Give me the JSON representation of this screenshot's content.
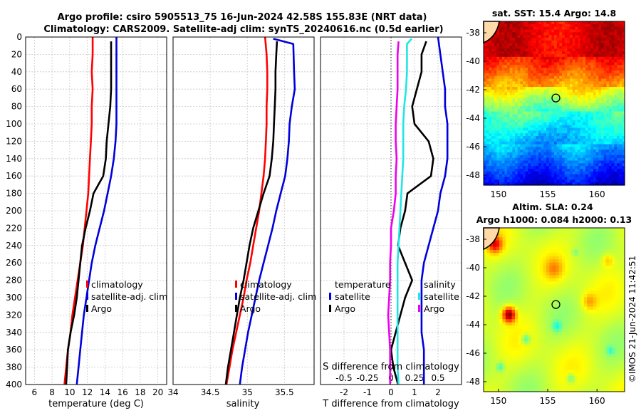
{
  "figure": {
    "title_line1": "Argo profile: csiro 5905513_75 16-Jun-2024 42.58S 155.83E (NRT data)",
    "title_line2": "Climatology: CARS2009. Satellite-adj clim: synTS_20240616.nc (0.5d earlier)",
    "credit": "©IMOS 21-Jun-2024 11:42:51"
  },
  "colors": {
    "climatology": "#ff0000",
    "satellite_adj_clim": "#0000dd",
    "argo": "#000000",
    "temp_diff_satellite": "#0000dd",
    "sal_diff_satellite": "#22e5e5",
    "sal_diff_argo": "#ee00ee",
    "grid": "#c8c8c8"
  },
  "chart_data": [
    {
      "id": "temperature",
      "type": "line",
      "xlabel": "temperature (deg C)",
      "xlim": [
        5,
        21
      ],
      "xticks": [
        6,
        8,
        10,
        12,
        14,
        16,
        18,
        20
      ],
      "ylim": [
        0,
        400
      ],
      "yticks": [
        0,
        20,
        40,
        60,
        80,
        100,
        120,
        140,
        160,
        180,
        200,
        220,
        240,
        260,
        280,
        300,
        320,
        340,
        360,
        380,
        400
      ],
      "y_reversed": true,
      "series": [
        {
          "name": "climatology",
          "color": "#ff0000",
          "x": [
            12.6,
            12.6,
            12.5,
            12.6,
            12.5,
            12.5,
            12.4,
            12.3,
            12.2,
            12.1,
            11.9,
            11.7,
            11.5,
            11.2,
            10.9,
            10.6,
            10.3,
            10.1,
            9.8,
            9.6,
            9.4
          ],
          "y": [
            0,
            20,
            40,
            60,
            80,
            100,
            120,
            140,
            160,
            180,
            200,
            220,
            240,
            260,
            280,
            300,
            320,
            340,
            360,
            380,
            400
          ]
        },
        {
          "name": "satellite-adj. clim",
          "color": "#0000dd",
          "x": [
            15.3,
            15.3,
            15.3,
            15.3,
            15.3,
            15.3,
            15.2,
            15.0,
            14.7,
            14.3,
            13.9,
            13.4,
            12.9,
            12.5,
            12.2,
            11.9,
            11.6,
            11.4,
            11.2,
            11.0,
            10.8
          ],
          "y": [
            0,
            20,
            40,
            60,
            80,
            100,
            120,
            140,
            160,
            180,
            200,
            220,
            240,
            260,
            280,
            300,
            320,
            340,
            360,
            380,
            400
          ]
        },
        {
          "name": "Argo",
          "color": "#000000",
          "x": [
            14.7,
            14.7,
            14.7,
            14.7,
            14.6,
            14.4,
            14.2,
            14.1,
            13.8,
            12.7,
            12.3,
            11.8,
            11.4,
            11.2,
            11.0,
            10.8,
            10.5,
            10.1,
            9.8,
            9.7,
            9.6
          ],
          "y": [
            5,
            20,
            40,
            60,
            80,
            100,
            120,
            140,
            160,
            180,
            200,
            220,
            240,
            260,
            280,
            300,
            320,
            340,
            360,
            380,
            400
          ]
        }
      ],
      "legend": [
        "climatology",
        "satellite-adj. clim",
        "Argo"
      ]
    },
    {
      "id": "salinity",
      "type": "line",
      "xlabel": "salinity",
      "xlim": [
        34.0,
        35.9
      ],
      "xticks": [
        34,
        34.5,
        35,
        35.5
      ],
      "xtick_labels": [
        "34",
        "34.5",
        "35",
        "35.5"
      ],
      "ylim": [
        0,
        400
      ],
      "y_reversed": true,
      "series": [
        {
          "name": "climatology",
          "color": "#ff0000",
          "x": [
            35.24,
            35.26,
            35.27,
            35.27,
            35.26,
            35.26,
            35.25,
            35.24,
            35.22,
            35.19,
            35.16,
            35.12,
            35.08,
            35.04,
            34.99,
            34.95,
            34.9,
            34.85,
            34.8,
            34.76,
            34.72
          ],
          "y": [
            0,
            20,
            40,
            60,
            80,
            100,
            120,
            140,
            160,
            180,
            200,
            220,
            240,
            260,
            280,
            300,
            320,
            340,
            360,
            380,
            400
          ]
        },
        {
          "name": "satellite-adj. clim",
          "color": "#0000dd",
          "x": [
            35.35,
            35.62,
            35.63,
            35.64,
            35.6,
            35.57,
            35.56,
            35.54,
            35.51,
            35.45,
            35.39,
            35.34,
            35.28,
            35.22,
            35.16,
            35.11,
            35.06,
            35.01,
            34.97,
            34.93,
            34.9
          ],
          "y": [
            2,
            8,
            40,
            60,
            80,
            100,
            120,
            140,
            160,
            180,
            200,
            220,
            240,
            260,
            280,
            300,
            320,
            340,
            360,
            380,
            400
          ]
        },
        {
          "name": "Argo",
          "color": "#000000",
          "x": [
            35.4,
            35.39,
            35.38,
            35.38,
            35.37,
            35.36,
            35.35,
            35.33,
            35.3,
            35.22,
            35.15,
            35.08,
            35.03,
            34.99,
            34.95,
            34.9,
            34.86,
            34.82,
            34.78,
            34.74,
            34.71
          ],
          "y": [
            5,
            20,
            40,
            60,
            80,
            100,
            120,
            140,
            160,
            180,
            200,
            220,
            240,
            260,
            280,
            300,
            320,
            340,
            360,
            380,
            400
          ]
        }
      ],
      "legend": [
        "climatology",
        "satellite-adj. clim",
        "Argo"
      ]
    },
    {
      "id": "difference",
      "type": "line",
      "xlabel": "T difference from climatology",
      "top_axis_label": "S difference from climatology",
      "xlim": [
        -3,
        3
      ],
      "xticks": [
        -2,
        -1,
        0,
        1,
        2
      ],
      "s_tick_values": [
        -0.5,
        -0.25,
        0,
        0.25,
        0.5
      ],
      "s_tick_labels": [
        "-0.5",
        "-0.25",
        "0",
        "0.25",
        "0.5"
      ],
      "ylim": [
        0,
        400
      ],
      "y_reversed": true,
      "series": [
        {
          "name": "temperature satellite",
          "color": "#0000dd",
          "x": [
            2.0,
            2.1,
            2.2,
            2.3,
            2.3,
            2.4,
            2.4,
            2.4,
            2.3,
            2.1,
            2.0,
            1.8,
            1.6,
            1.4,
            1.3,
            1.3,
            1.3,
            1.3,
            1.4,
            1.4,
            1.4
          ],
          "y": [
            0,
            20,
            40,
            60,
            80,
            100,
            120,
            140,
            160,
            180,
            200,
            220,
            240,
            260,
            280,
            300,
            320,
            340,
            360,
            380,
            400
          ]
        },
        {
          "name": "temperature Argo",
          "color": "#000000",
          "x": [
            1.5,
            1.3,
            1.3,
            1.1,
            0.9,
            1.0,
            1.6,
            1.8,
            1.7,
            0.7,
            0.6,
            0.4,
            0.3,
            0.6,
            0.9,
            0.6,
            0.4,
            0.2,
            0.0,
            0.1,
            0.3
          ],
          "y": [
            5,
            20,
            40,
            60,
            80,
            100,
            120,
            140,
            160,
            180,
            200,
            220,
            240,
            260,
            280,
            300,
            320,
            340,
            360,
            380,
            400
          ]
        },
        {
          "name": "salinity satellite",
          "color": "#22e5e5",
          "x": [
            0.22,
            0.17,
            0.17,
            0.16,
            0.14,
            0.13,
            0.13,
            0.13,
            0.12,
            0.11,
            0.1,
            0.09,
            0.08,
            0.07,
            0.07,
            0.07,
            0.07,
            0.07,
            0.07,
            0.07,
            0.08
          ],
          "y": [
            2,
            8,
            40,
            60,
            80,
            100,
            120,
            140,
            160,
            180,
            200,
            220,
            240,
            260,
            280,
            300,
            320,
            340,
            360,
            380,
            400
          ]
        },
        {
          "name": "salinity Argo",
          "color": "#ee00ee",
          "x": [
            0.08,
            0.07,
            0.07,
            0.07,
            0.06,
            0.05,
            0.05,
            0.06,
            0.05,
            0.05,
            0.03,
            0.0,
            0.0,
            -0.01,
            -0.01,
            -0.02,
            -0.03,
            -0.02,
            -0.01,
            -0.01,
            -0.01
          ],
          "y": [
            5,
            20,
            40,
            60,
            80,
            100,
            120,
            140,
            160,
            180,
            200,
            220,
            240,
            260,
            280,
            300,
            320,
            340,
            360,
            380,
            400
          ]
        }
      ],
      "legend_groups": [
        {
          "title": "temperature",
          "items": [
            "satellite",
            "Argo"
          ]
        },
        {
          "title": "salinity",
          "items": [
            "satellite",
            "Argo"
          ]
        }
      ]
    },
    {
      "id": "sst_map",
      "type": "heatmap",
      "title": "sat. SST: 15.4 Argo: 14.8",
      "xlim": [
        148.5,
        162.8
      ],
      "ylim": [
        -48.7,
        -37.2
      ],
      "xticks": [
        150,
        155,
        160
      ],
      "yticks": [
        -38,
        -40,
        -42,
        -44,
        -46,
        -48
      ],
      "argo_position": {
        "lon": 155.83,
        "lat": -42.58
      }
    },
    {
      "id": "sla_map",
      "type": "heatmap",
      "title_line1": "Altim. SLA: 0.24",
      "title_line2": "Argo h1000: 0.084 h2000: 0.13",
      "xlim": [
        148.5,
        162.8
      ],
      "ylim": [
        -48.7,
        -37.2
      ],
      "xticks": [
        150,
        155,
        160
      ],
      "yticks": [
        -38,
        -40,
        -42,
        -44,
        -46,
        -48
      ],
      "argo_position": {
        "lon": 155.83,
        "lat": -42.58
      }
    }
  ]
}
